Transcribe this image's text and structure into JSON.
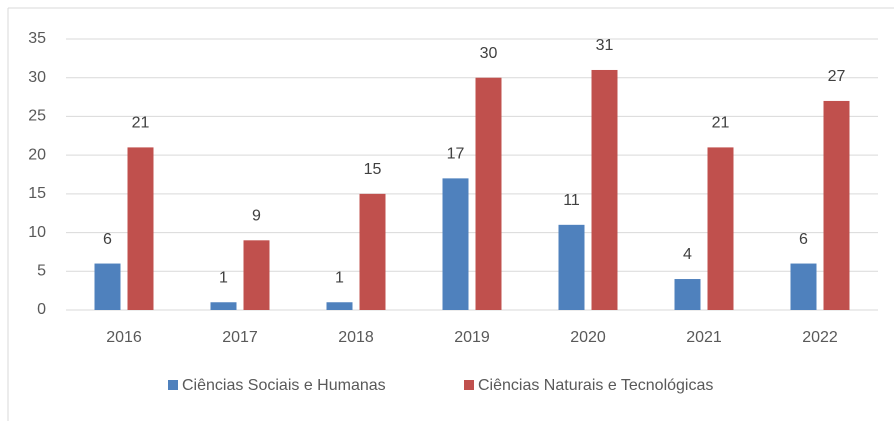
{
  "chart_data": {
    "type": "bar",
    "categories": [
      "2016",
      "2017",
      "2018",
      "2019",
      "2020",
      "2021",
      "2022"
    ],
    "series": [
      {
        "name": "Ciências Sociais e Humanas",
        "color": "#4f81bd",
        "values": [
          6,
          1,
          1,
          17,
          11,
          4,
          6
        ]
      },
      {
        "name": "Ciências Naturais e Tecnológicas",
        "color": "#c0504d",
        "values": [
          21,
          9,
          15,
          30,
          31,
          21,
          27
        ]
      }
    ],
    "ylim": [
      0,
      35
    ],
    "yticks": [
      0,
      5,
      10,
      15,
      20,
      25,
      30,
      35
    ],
    "grid": true,
    "legend": "bottom"
  }
}
